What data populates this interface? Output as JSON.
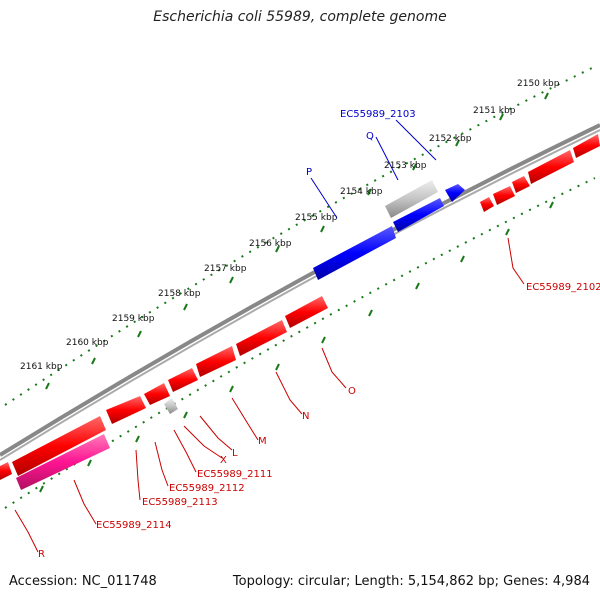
{
  "title": "Escherichia coli 55989, complete genome",
  "footer": {
    "accession": "Accession: NC_011748",
    "summary": "Topology: circular; Length: 5,154,862 bp; Genes: 4,984"
  },
  "colors": {
    "forward": "#ff0000",
    "reverse": "#0000ff",
    "rna": "#ff1493",
    "other": "#bbbbbb",
    "backbone": "#888888",
    "ticks": "#1a7a1a"
  },
  "ticks": [
    "2150 kbp",
    "2151 kbp",
    "2152 kbp",
    "2153 kbp",
    "2154 kbp",
    "2155 kbp",
    "2156 kbp",
    "2157 kbp",
    "2158 kbp",
    "2159 kbp",
    "2160 kbp",
    "2161 kbp"
  ],
  "labels": {
    "ec2103": "EC55989_2103",
    "q": "Q",
    "p": "P",
    "ec2102": "EC55989_2102",
    "o": "O",
    "n": "N",
    "m": "M",
    "l": "L",
    "x": "X",
    "ec2111": "EC55989_2111",
    "ec2112": "EC55989_2112",
    "ec2113": "EC55989_2113",
    "ec2114": "EC55989_2114",
    "r": "R"
  }
}
